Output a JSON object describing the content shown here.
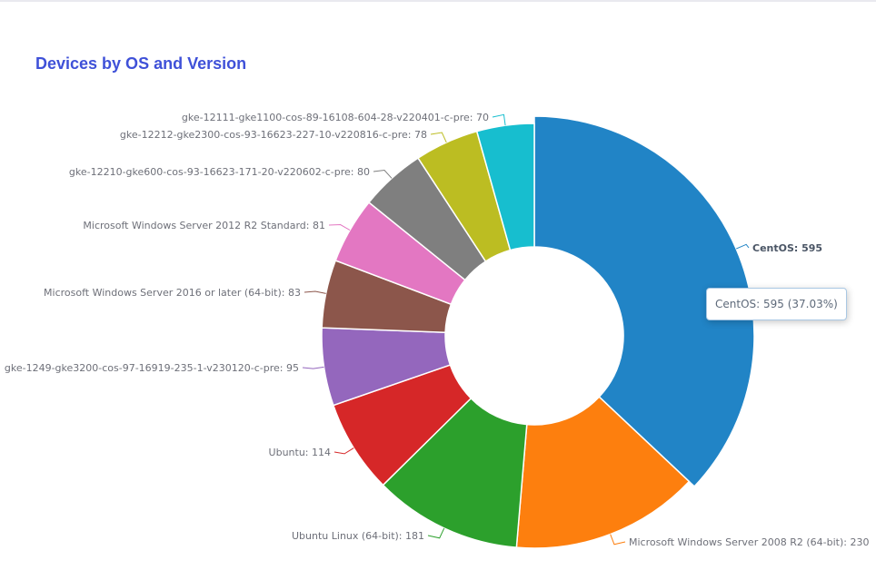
{
  "title": "Devices by OS and Version",
  "chart_data": {
    "type": "pie",
    "title": "Devices by OS and Version",
    "donut": true,
    "start_angle_deg": 90,
    "direction": "clockwise",
    "series": [
      {
        "name": "CentOS",
        "value": 595,
        "color": "#2184c6",
        "label": "CentOS: 595",
        "highlighted": true
      },
      {
        "name": "Microsoft Windows Server 2008 R2 (64-bit)",
        "value": 230,
        "color": "#fd7f0e",
        "label": "Microsoft Windows Server 2008 R2 (64-bit): 230"
      },
      {
        "name": "Ubuntu Linux (64-bit)",
        "value": 181,
        "color": "#2ca02c",
        "label": "Ubuntu Linux (64-bit): 181"
      },
      {
        "name": "Ubuntu",
        "value": 114,
        "color": "#d62728",
        "label": "Ubuntu: 114"
      },
      {
        "name": "gke-1249-gke3200-cos-97-16919-235-1-v230120-c-pre",
        "value": 95,
        "color": "#9467bd",
        "label": "gke-1249-gke3200-cos-97-16919-235-1-v230120-c-pre: 95"
      },
      {
        "name": "Microsoft Windows Server 2016 or later (64-bit)",
        "value": 83,
        "color": "#8c564b",
        "label": "Microsoft Windows Server 2016 or later (64-bit): 83"
      },
      {
        "name": "Microsoft Windows Server 2012 R2 Standard",
        "value": 81,
        "color": "#e377c2",
        "label": "Microsoft Windows Server 2012 R2 Standard: 81"
      },
      {
        "name": "gke-12210-gke600-cos-93-16623-171-20-v220602-c-pre",
        "value": 80,
        "color": "#7f7f7f",
        "label": "gke-12210-gke600-cos-93-16623-171-20-v220602-c-pre: 80"
      },
      {
        "name": "gke-12212-gke2300-cos-93-16623-227-10-v220816-c-pre",
        "value": 78,
        "color": "#bcbd22",
        "label": "gke-12212-gke2300-cos-93-16623-227-10-v220816-c-pre: 78"
      },
      {
        "name": "gke-12111-gke1100-cos-89-16108-604-28-v220401-c-pre",
        "value": 70,
        "color": "#17becf",
        "label": "gke-12111-gke1100-cos-89-16108-604-28-v220401-c-pre: 70"
      }
    ],
    "tooltip": {
      "text": "CentOS: 595 (37.03%)"
    }
  }
}
